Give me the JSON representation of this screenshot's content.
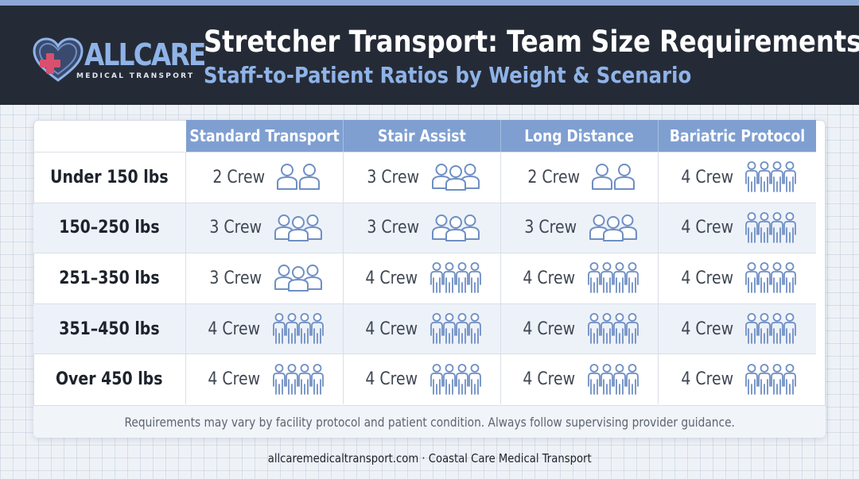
{
  "brand": {
    "logo_text": "ALLCARE",
    "logo_subtext": "MEDICAL TRANSPORT",
    "icon": "heart-cross-icon",
    "colors": {
      "header_bg": "#252b36",
      "accent": "#8fb3e8",
      "column_header": "#7f9fd1",
      "cross": "#d9506e"
    }
  },
  "header": {
    "title": "Stretcher Transport: Team Size Requirements",
    "subtitle": "Staff-to-Patient Ratios by Weight & Scenario"
  },
  "table": {
    "columns": [
      "Standard Transport",
      "Stair Assist",
      "Long Distance",
      "Bariatric Protocol"
    ],
    "rows": [
      {
        "label": "Under 150 lbs",
        "cells": [
          {
            "text": "2 Crew",
            "icon": "two-people-icon",
            "crew": 2
          },
          {
            "text": "3 Crew",
            "icon": "three-people-icon",
            "crew": 3
          },
          {
            "text": "2 Crew",
            "icon": "two-people-icon",
            "crew": 2
          },
          {
            "text": "4 Crew",
            "icon": "four-people-icon",
            "crew": 4
          }
        ]
      },
      {
        "label": "150–250 lbs",
        "cells": [
          {
            "text": "3 Crew",
            "icon": "three-people-icon",
            "crew": 3
          },
          {
            "text": "3 Crew",
            "icon": "three-people-icon",
            "crew": 3
          },
          {
            "text": "3 Crew",
            "icon": "three-people-icon",
            "crew": 3
          },
          {
            "text": "4 Crew",
            "icon": "four-people-icon",
            "crew": 4
          }
        ]
      },
      {
        "label": "251–350 lbs",
        "cells": [
          {
            "text": "3 Crew",
            "icon": "three-people-icon",
            "crew": 3
          },
          {
            "text": "4 Crew",
            "icon": "four-people-icon",
            "crew": 4
          },
          {
            "text": "4 Crew",
            "icon": "four-people-icon",
            "crew": 4
          },
          {
            "text": "4 Crew",
            "icon": "four-people-icon",
            "crew": 4
          }
        ]
      },
      {
        "label": "351–450 lbs",
        "cells": [
          {
            "text": "4 Crew",
            "icon": "four-people-icon",
            "crew": 4
          },
          {
            "text": "4 Crew",
            "icon": "four-people-icon",
            "crew": 4
          },
          {
            "text": "4 Crew",
            "icon": "four-people-icon",
            "crew": 4
          },
          {
            "text": "4 Crew",
            "icon": "four-people-icon",
            "crew": 4
          }
        ]
      },
      {
        "label": "Over 450 lbs",
        "cells": [
          {
            "text": "4 Crew",
            "icon": "four-people-icon",
            "crew": 4
          },
          {
            "text": "4 Crew",
            "icon": "four-people-icon",
            "crew": 4
          },
          {
            "text": "4 Crew",
            "icon": "four-people-icon",
            "crew": 4
          },
          {
            "text": "4 Crew",
            "icon": "four-people-icon",
            "crew": 4
          }
        ]
      }
    ],
    "note": "Requirements may vary by facility protocol and patient condition. Always follow supervising provider guidance."
  },
  "footer": {
    "text": "allcaremedicaltransport.com · Coastal Care Medical Transport"
  }
}
